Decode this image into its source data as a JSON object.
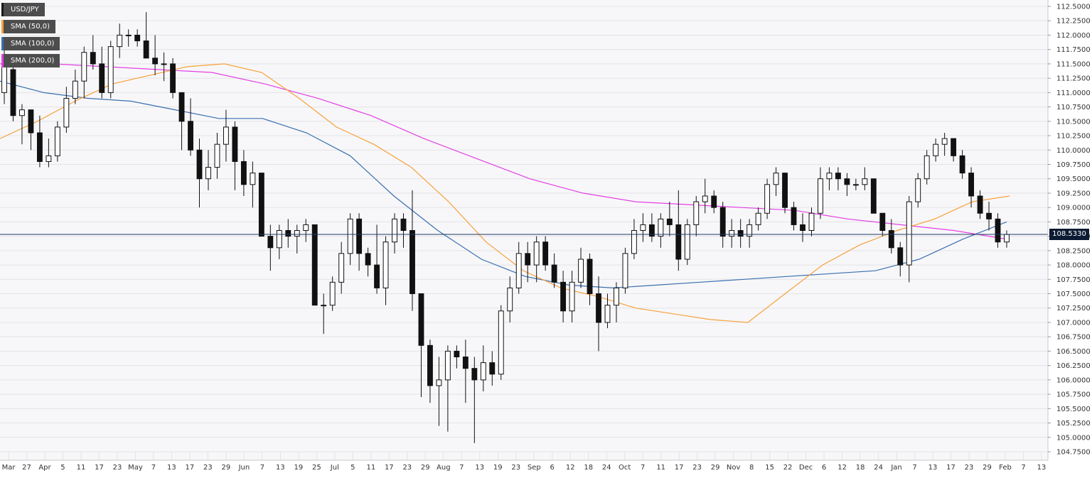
{
  "legend": {
    "items": [
      {
        "label": "USD/JPY",
        "color": "#1a1a1a"
      },
      {
        "label": "SMA (50,0)",
        "color": "#f7a13a"
      },
      {
        "label": "SMA (100,0)",
        "color": "#3a6fb0"
      },
      {
        "label": "SMA (200,0)",
        "color": "#e43fe3"
      }
    ]
  },
  "current_price_label": "108.5330",
  "chart_data": {
    "type": "candlestick",
    "symbol": "USD/JPY",
    "timeframe": "daily",
    "ylim": [
      104.75,
      112.5
    ],
    "y_ticks": [
      "112.5000",
      "112.2500",
      "112.0000",
      "111.7500",
      "111.5000",
      "111.2500",
      "111.0000",
      "110.7500",
      "110.5000",
      "110.2500",
      "110.0000",
      "109.7500",
      "109.5000",
      "109.2500",
      "109.0000",
      "108.7500",
      "108.5000",
      "108.2500",
      "108.0000",
      "107.7500",
      "107.5000",
      "107.2500",
      "107.0000",
      "106.7500",
      "106.5000",
      "106.2500",
      "106.0000",
      "105.7500",
      "105.5000",
      "105.2500",
      "105.0000",
      "104.7500"
    ],
    "x_ticks": [
      "Mar",
      "27",
      "Apr",
      "5",
      "11",
      "17",
      "23",
      "May",
      "7",
      "13",
      "17",
      "23",
      "29",
      "Jun",
      "7",
      "13",
      "19",
      "25",
      "Jul",
      "5",
      "11",
      "17",
      "23",
      "29",
      "Aug",
      "7",
      "13",
      "19",
      "23",
      "Sep",
      "6",
      "12",
      "18",
      "24",
      "Oct",
      "7",
      "11",
      "17",
      "23",
      "29",
      "Nov",
      "8",
      "15",
      "22",
      "Dec",
      "6",
      "12",
      "18",
      "24",
      "Jan",
      "7",
      "13",
      "17",
      "23",
      "29",
      "Feb",
      "7",
      "13"
    ],
    "current_price": 108.533,
    "price_line_color": "#1f3a66",
    "sma50": [
      110.2,
      110.5,
      110.85,
      111.15,
      111.3,
      111.45,
      111.5,
      111.35,
      110.9,
      110.4,
      110.1,
      109.7,
      109.1,
      108.4,
      107.9,
      107.6,
      107.45,
      107.25,
      107.15,
      107.05,
      107.0,
      107.5,
      108.0,
      108.35,
      108.6,
      108.8,
      109.1,
      109.2
    ],
    "sma100": [
      111.2,
      111.0,
      110.9,
      110.85,
      110.7,
      110.55,
      110.55,
      110.3,
      109.9,
      109.2,
      108.6,
      108.1,
      107.8,
      107.65,
      107.6,
      107.65,
      107.7,
      107.75,
      107.8,
      107.85,
      107.9,
      108.1,
      108.45,
      108.75
    ],
    "sma200": [
      111.5,
      111.5,
      111.45,
      111.4,
      111.35,
      111.15,
      110.9,
      110.6,
      110.2,
      109.85,
      109.5,
      109.25,
      109.1,
      109.05,
      109.0,
      108.95,
      108.8,
      108.7,
      108.6,
      108.45
    ],
    "candles": [
      [
        111.0,
        111.9,
        110.8,
        111.5
      ],
      [
        111.4,
        111.6,
        110.5,
        110.6
      ],
      [
        110.6,
        110.8,
        110.1,
        110.7
      ],
      [
        110.7,
        110.7,
        110.0,
        110.3
      ],
      [
        110.3,
        110.6,
        109.7,
        109.8
      ],
      [
        109.8,
        110.2,
        109.7,
        109.9
      ],
      [
        109.9,
        110.5,
        109.8,
        110.4
      ],
      [
        110.4,
        111.1,
        110.3,
        110.9
      ],
      [
        110.9,
        111.4,
        110.8,
        111.2
      ],
      [
        111.2,
        111.8,
        110.9,
        111.7
      ],
      [
        111.7,
        112.0,
        111.4,
        111.5
      ],
      [
        111.5,
        111.8,
        110.9,
        111.0
      ],
      [
        111.0,
        111.9,
        110.9,
        111.8
      ],
      [
        111.8,
        112.2,
        111.6,
        112.0
      ],
      [
        112.0,
        112.1,
        111.8,
        112.0
      ],
      [
        112.0,
        112.1,
        111.8,
        111.9
      ],
      [
        111.9,
        112.4,
        111.6,
        111.6
      ],
      [
        111.6,
        112.0,
        111.3,
        111.5
      ],
      [
        111.5,
        111.7,
        111.2,
        111.5
      ],
      [
        111.5,
        111.6,
        110.9,
        111.0
      ],
      [
        111.0,
        111.0,
        110.0,
        110.5
      ],
      [
        110.5,
        110.9,
        109.9,
        110.0
      ],
      [
        110.0,
        110.2,
        109.0,
        109.5
      ],
      [
        109.5,
        110.0,
        109.3,
        109.7
      ],
      [
        109.7,
        110.3,
        109.5,
        110.1
      ],
      [
        110.1,
        110.7,
        109.8,
        110.4
      ],
      [
        110.4,
        110.5,
        109.3,
        109.8
      ],
      [
        109.8,
        110.0,
        109.2,
        109.4
      ],
      [
        109.4,
        109.8,
        109.0,
        109.6
      ],
      [
        109.6,
        109.6,
        108.5,
        108.5
      ],
      [
        108.5,
        108.7,
        107.9,
        108.3
      ],
      [
        108.3,
        108.7,
        108.1,
        108.6
      ],
      [
        108.6,
        108.8,
        108.3,
        108.5
      ],
      [
        108.5,
        108.7,
        108.2,
        108.6
      ],
      [
        108.6,
        108.8,
        108.4,
        108.7
      ],
      [
        108.7,
        108.7,
        107.3,
        107.3
      ],
      [
        107.3,
        107.5,
        106.8,
        107.3
      ],
      [
        107.3,
        107.8,
        107.2,
        107.7
      ],
      [
        107.7,
        108.4,
        107.5,
        108.2
      ],
      [
        108.2,
        108.9,
        108.0,
        108.8
      ],
      [
        108.8,
        108.9,
        107.9,
        108.2
      ],
      [
        108.2,
        108.3,
        107.8,
        108.0
      ],
      [
        108.0,
        108.7,
        107.5,
        107.6
      ],
      [
        107.6,
        108.5,
        107.3,
        108.4
      ],
      [
        108.4,
        108.9,
        108.2,
        108.8
      ],
      [
        108.8,
        108.9,
        108.3,
        108.6
      ],
      [
        108.6,
        109.3,
        107.2,
        107.5
      ],
      [
        107.5,
        107.5,
        105.7,
        106.6
      ],
      [
        106.6,
        106.7,
        105.6,
        105.9
      ],
      [
        105.9,
        106.4,
        105.2,
        106.0
      ],
      [
        106.0,
        106.6,
        105.1,
        106.5
      ],
      [
        106.5,
        106.6,
        106.2,
        106.4
      ],
      [
        106.4,
        106.7,
        105.6,
        106.2
      ],
      [
        106.2,
        106.4,
        104.9,
        106.0
      ],
      [
        106.0,
        106.6,
        105.8,
        106.3
      ],
      [
        106.3,
        106.5,
        105.9,
        106.1
      ],
      [
        106.1,
        107.3,
        106.0,
        107.2
      ],
      [
        107.2,
        107.8,
        107.0,
        107.6
      ],
      [
        107.6,
        108.4,
        107.5,
        108.2
      ],
      [
        108.2,
        108.4,
        107.7,
        108.0
      ],
      [
        108.0,
        108.5,
        107.7,
        108.4
      ],
      [
        108.4,
        108.5,
        107.9,
        108.0
      ],
      [
        108.0,
        108.2,
        107.6,
        107.7
      ],
      [
        107.7,
        107.9,
        107.0,
        107.2
      ],
      [
        107.2,
        107.9,
        107.0,
        107.7
      ],
      [
        107.7,
        108.3,
        107.6,
        108.1
      ],
      [
        108.1,
        108.2,
        107.3,
        107.5
      ],
      [
        107.5,
        107.8,
        106.5,
        107.0
      ],
      [
        107.0,
        107.5,
        106.9,
        107.3
      ],
      [
        107.3,
        107.7,
        107.0,
        107.6
      ],
      [
        107.6,
        108.3,
        107.5,
        108.2
      ],
      [
        108.2,
        108.8,
        108.1,
        108.6
      ],
      [
        108.6,
        108.9,
        108.4,
        108.7
      ],
      [
        108.7,
        108.9,
        108.4,
        108.5
      ],
      [
        108.5,
        108.9,
        108.3,
        108.8
      ],
      [
        108.8,
        109.1,
        108.5,
        108.7
      ],
      [
        108.7,
        109.3,
        107.9,
        108.1
      ],
      [
        108.1,
        108.8,
        108.0,
        108.7
      ],
      [
        108.7,
        109.2,
        108.5,
        109.1
      ],
      [
        109.1,
        109.5,
        108.9,
        109.2
      ],
      [
        109.2,
        109.3,
        108.9,
        109.0
      ],
      [
        109.0,
        109.1,
        108.3,
        108.5
      ],
      [
        108.5,
        108.8,
        108.3,
        108.6
      ],
      [
        108.6,
        108.8,
        108.3,
        108.5
      ],
      [
        108.5,
        108.8,
        108.3,
        108.7
      ],
      [
        108.7,
        109.0,
        108.6,
        108.9
      ],
      [
        108.9,
        109.5,
        108.8,
        109.4
      ],
      [
        109.4,
        109.7,
        109.2,
        109.6
      ],
      [
        109.6,
        109.6,
        108.9,
        109.0
      ],
      [
        109.0,
        109.1,
        108.6,
        108.7
      ],
      [
        108.7,
        108.9,
        108.4,
        108.6
      ],
      [
        108.6,
        109.0,
        108.5,
        108.9
      ],
      [
        108.9,
        109.7,
        108.8,
        109.5
      ],
      [
        109.5,
        109.7,
        109.3,
        109.6
      ],
      [
        109.6,
        109.7,
        109.3,
        109.5
      ],
      [
        109.5,
        109.6,
        109.2,
        109.4
      ],
      [
        109.4,
        109.5,
        109.3,
        109.4
      ],
      [
        109.4,
        109.7,
        109.3,
        109.5
      ],
      [
        109.5,
        109.5,
        108.9,
        108.9
      ],
      [
        108.9,
        108.9,
        108.5,
        108.6
      ],
      [
        108.6,
        108.8,
        108.2,
        108.3
      ],
      [
        108.3,
        108.4,
        107.8,
        108.0
      ],
      [
        108.0,
        109.2,
        107.7,
        109.1
      ],
      [
        109.1,
        109.6,
        109.0,
        109.5
      ],
      [
        109.5,
        110.0,
        109.4,
        109.9
      ],
      [
        109.9,
        110.2,
        109.8,
        110.1
      ],
      [
        110.1,
        110.3,
        109.9,
        110.2
      ],
      [
        110.2,
        110.2,
        109.8,
        109.9
      ],
      [
        109.9,
        110.0,
        109.5,
        109.6
      ],
      [
        109.6,
        109.7,
        109.0,
        109.2
      ],
      [
        109.2,
        109.3,
        108.8,
        108.9
      ],
      [
        108.9,
        109.1,
        108.6,
        108.8
      ],
      [
        108.8,
        108.9,
        108.3,
        108.4
      ],
      [
        108.4,
        108.6,
        108.3,
        108.53
      ]
    ]
  }
}
